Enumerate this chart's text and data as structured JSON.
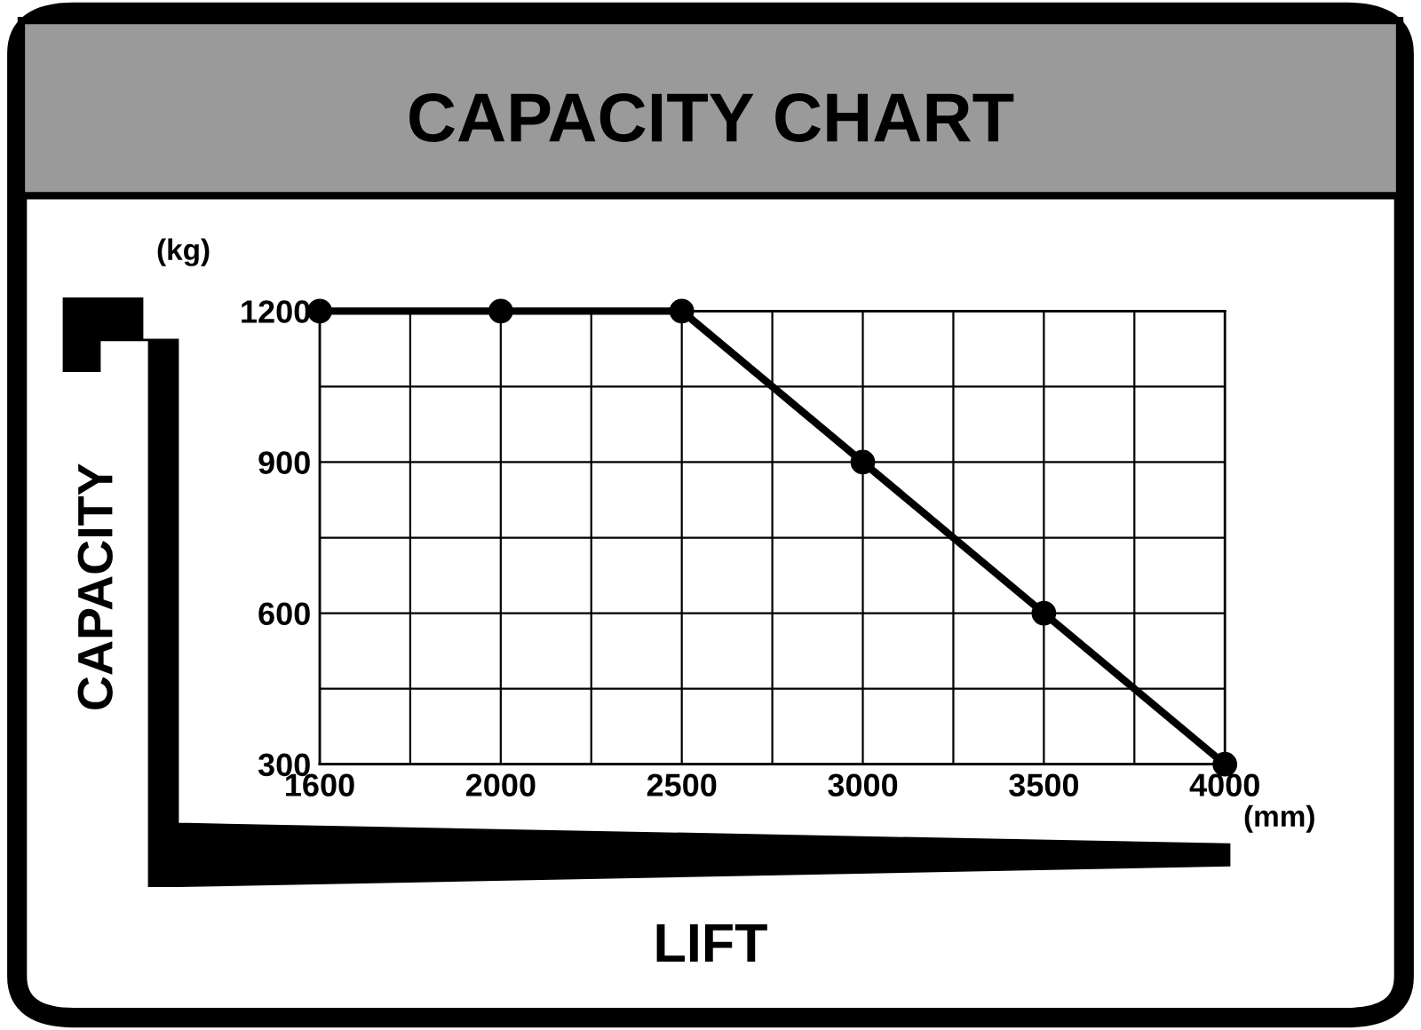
{
  "chart_data": {
    "type": "line",
    "title": "CAPACITY CHART",
    "xlabel": "LIFT",
    "ylabel": "CAPACITY",
    "annotations": [
      "(kg)",
      "(mm)"
    ],
    "categories": [
      "1600",
      "2000",
      "2500",
      "3000",
      "3500",
      "4000"
    ],
    "values": [
      1200,
      1200,
      1200,
      900,
      600,
      300
    ],
    "color": "#000000",
    "ylim": [
      300,
      1200
    ],
    "yticks": [
      300,
      {
        "value": 450,
        "label": null
      },
      600,
      {
        "value": 750,
        "label": null
      },
      900,
      {
        "value": 1050,
        "label": null
      },
      1200
    ],
    "grid": true,
    "marker": "circle",
    "line_style": "solid"
  }
}
